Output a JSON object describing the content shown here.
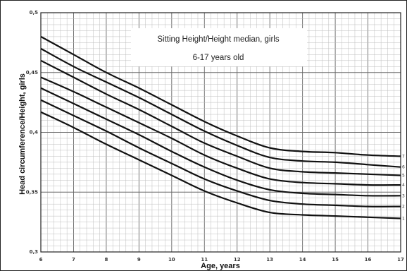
{
  "chart_data": {
    "type": "line",
    "title": "Sitting Height/Height median, girls",
    "subtitle": "6-17 years old",
    "xlabel": "Age, years",
    "ylabel": "Head circumference/Height, girls",
    "xlim": [
      6,
      17
    ],
    "ylim": [
      0.3,
      0.5
    ],
    "xticks": [
      "6",
      "7",
      "8",
      "9",
      "10",
      "11",
      "12",
      "13",
      "14",
      "15",
      "16",
      "17"
    ],
    "yticks": [
      {
        "value": 0.3,
        "label": "0,3"
      },
      {
        "value": 0.35,
        "label": "0,35"
      },
      {
        "value": 0.4,
        "label": "0,4"
      },
      {
        "value": 0.45,
        "label": "0,45"
      },
      {
        "value": 0.5,
        "label": "0,5"
      }
    ],
    "grid": true,
    "x": [
      6,
      7,
      8,
      9,
      10,
      11,
      12,
      13,
      14,
      15,
      16,
      17
    ],
    "series": [
      {
        "name": "7",
        "values": [
          0.48,
          0.465,
          0.45,
          0.437,
          0.423,
          0.409,
          0.397,
          0.387,
          0.384,
          0.383,
          0.381,
          0.38
        ]
      },
      {
        "name": "6",
        "values": [
          0.47,
          0.455,
          0.442,
          0.429,
          0.415,
          0.401,
          0.389,
          0.379,
          0.376,
          0.375,
          0.373,
          0.371
        ]
      },
      {
        "name": "5",
        "values": [
          0.46,
          0.446,
          0.432,
          0.419,
          0.405,
          0.391,
          0.38,
          0.37,
          0.367,
          0.366,
          0.365,
          0.364
        ]
      },
      {
        "name": "4",
        "values": [
          0.446,
          0.434,
          0.421,
          0.408,
          0.395,
          0.381,
          0.37,
          0.361,
          0.358,
          0.357,
          0.356,
          0.356
        ]
      },
      {
        "name": "3",
        "values": [
          0.437,
          0.424,
          0.411,
          0.398,
          0.384,
          0.371,
          0.36,
          0.352,
          0.349,
          0.348,
          0.347,
          0.347
        ]
      },
      {
        "name": "2",
        "values": [
          0.427,
          0.414,
          0.401,
          0.387,
          0.374,
          0.361,
          0.351,
          0.343,
          0.34,
          0.339,
          0.338,
          0.338
        ]
      },
      {
        "name": "1",
        "values": [
          0.417,
          0.404,
          0.39,
          0.377,
          0.364,
          0.351,
          0.341,
          0.333,
          0.331,
          0.33,
          0.329,
          0.328
        ]
      }
    ]
  }
}
